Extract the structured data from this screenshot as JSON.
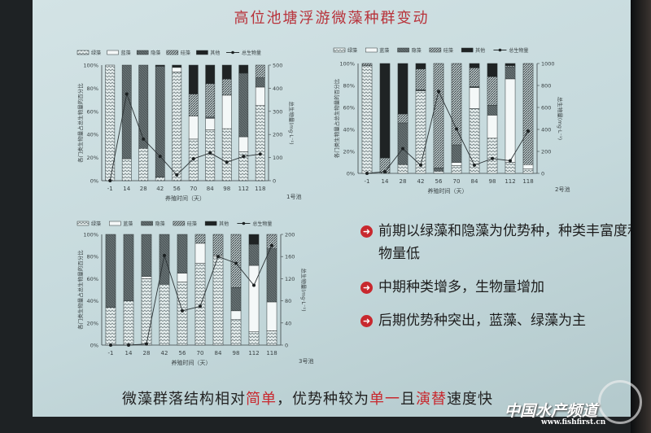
{
  "slide": {
    "title": "高位池塘浮游微藻种群变动",
    "bullets": [
      {
        "icon": "red-circle-arrow-icon",
        "text": "前期以绿藻和隐藻为优势种，种类丰富度和生物量低"
      },
      {
        "icon": "red-circle-arrow-icon",
        "text": "中期种类增多，生物量增加"
      },
      {
        "icon": "red-circle-arrow-icon",
        "text": "后期优势种突出，蓝藻、绿藻为主"
      }
    ],
    "conclusion": {
      "parts": [
        {
          "text": "微藻群落结构相对",
          "red": false
        },
        {
          "text": "简单",
          "red": true
        },
        {
          "text": "，优势种较为",
          "red": false
        },
        {
          "text": "单一",
          "red": true
        },
        {
          "text": "且",
          "red": false
        },
        {
          "text": "演替",
          "red": true
        },
        {
          "text": "速度快",
          "red": false
        }
      ]
    },
    "watermark": {
      "name": "中国水产频道",
      "url": "www.fishfirst.cn"
    },
    "colors": {
      "title": "#b8323a",
      "accent_red": "#c8282e",
      "slide_bg": "#c8dcdf"
    }
  },
  "chart_data": [
    {
      "type": "bar+line",
      "stacked": true,
      "pond_label": "1号池",
      "xlabel": "养殖时间（天）",
      "ylabel": "各门类生物量占总生物量的百分比",
      "y2label": "总生物量(mg·L⁻¹)",
      "categories": [
        "-1",
        "14",
        "28",
        "42",
        "56",
        "70",
        "84",
        "98",
        "112",
        "118"
      ],
      "ylim": [
        0,
        100
      ],
      "yticks": [
        "0%",
        "20%",
        "40%",
        "60%",
        "80%",
        "100%"
      ],
      "y2lim": [
        0,
        500
      ],
      "y2ticks": [
        "0",
        "100",
        "200",
        "300",
        "400",
        "500"
      ],
      "series": [
        {
          "name": "绿藻",
          "pattern": "zigzag",
          "values": [
            100,
            19,
            28,
            3,
            94,
            36,
            44,
            45,
            25,
            65
          ]
        },
        {
          "name": "蓝藻",
          "pattern": "white",
          "values": [
            0,
            0,
            0,
            0,
            4,
            20,
            10,
            29,
            13,
            16
          ]
        },
        {
          "name": "隐藻",
          "pattern": "dark",
          "values": [
            0,
            81,
            72,
            96,
            0,
            0,
            1,
            0,
            55,
            8
          ]
        },
        {
          "name": "硅藻",
          "pattern": "hatch",
          "values": [
            0,
            0,
            0,
            0,
            0,
            19,
            29,
            14,
            0,
            11
          ]
        },
        {
          "name": "其他",
          "pattern": "black",
          "values": [
            0,
            0,
            0,
            1,
            2,
            25,
            16,
            12,
            7,
            0
          ]
        }
      ],
      "line": {
        "name": "总生物量",
        "values": [
          0,
          375,
          180,
          105,
          25,
          95,
          120,
          80,
          105,
          115
        ]
      }
    },
    {
      "type": "bar+line",
      "stacked": true,
      "pond_label": "2号池",
      "xlabel": "养殖时间（天）",
      "ylabel": "各门类生物量占总生物量的百分比",
      "y2label": "总生物量(mg·L⁻¹)",
      "categories": [
        "-1",
        "14",
        "28",
        "42",
        "56",
        "70",
        "84",
        "98",
        "112",
        "118"
      ],
      "ylim": [
        0,
        100
      ],
      "yticks": [
        "0%",
        "20%",
        "40%",
        "60%",
        "80%",
        "100%"
      ],
      "y2lim": [
        0,
        1000
      ],
      "y2ticks": [
        "0",
        "200",
        "400",
        "600",
        "800",
        "1000"
      ],
      "series": [
        {
          "name": "绿藻",
          "pattern": "zigzag",
          "values": [
            98,
            0,
            8,
            75,
            2,
            7,
            59,
            32,
            10,
            4
          ]
        },
        {
          "name": "蓝藻",
          "pattern": "white",
          "values": [
            0,
            0,
            0,
            0,
            0,
            3,
            19,
            21,
            76,
            4
          ]
        },
        {
          "name": "隐藻",
          "pattern": "dark",
          "values": [
            0,
            0,
            38,
            1,
            3,
            16,
            1,
            9,
            11,
            0
          ]
        },
        {
          "name": "硅藻",
          "pattern": "hatch",
          "values": [
            2,
            14,
            8,
            19,
            95,
            74,
            17,
            26,
            1,
            92
          ]
        },
        {
          "name": "其他",
          "pattern": "black",
          "values": [
            0,
            86,
            46,
            5,
            0,
            0,
            4,
            12,
            2,
            0
          ]
        }
      ],
      "line": {
        "name": "总生物量",
        "values": [
          0,
          15,
          225,
          75,
          745,
          405,
          75,
          135,
          115,
          385
        ]
      }
    },
    {
      "type": "bar+line",
      "stacked": true,
      "pond_label": "3号池",
      "xlabel": "养殖时间（天）",
      "ylabel": "各门类生物量占总生物量的百分比",
      "y2label": "总生物量(mg·L⁻¹)",
      "categories": [
        "-1",
        "14",
        "28",
        "42",
        "56",
        "70",
        "84",
        "98",
        "112",
        "118"
      ],
      "ylim": [
        0,
        100
      ],
      "yticks": [
        "0%",
        "20%",
        "40%",
        "60%",
        "80%",
        "100%"
      ],
      "y2lim": [
        0,
        200
      ],
      "y2ticks": [
        "0",
        "40",
        "80",
        "120",
        "160",
        "200"
      ],
      "series": [
        {
          "name": "绿藻",
          "pattern": "zigzag",
          "values": [
            34,
            40,
            60,
            55,
            57,
            74,
            80,
            23,
            12,
            13
          ]
        },
        {
          "name": "蓝藻",
          "pattern": "white",
          "values": [
            0,
            0,
            2,
            0,
            8,
            18,
            1,
            8,
            60,
            26
          ]
        },
        {
          "name": "隐藻",
          "pattern": "dark",
          "values": [
            66,
            60,
            38,
            45,
            35,
            0,
            0,
            21,
            19,
            48
          ]
        },
        {
          "name": "硅藻",
          "pattern": "hatch",
          "values": [
            0,
            0,
            0,
            0,
            0,
            8,
            19,
            48,
            0,
            13
          ]
        },
        {
          "name": "其他",
          "pattern": "black",
          "values": [
            0,
            0,
            0,
            0,
            0,
            0,
            0,
            0,
            9,
            0
          ]
        }
      ],
      "line": {
        "name": "总生物量",
        "values": [
          0,
          0,
          2,
          162,
          62,
          70,
          160,
          148,
          108,
          180
        ]
      }
    }
  ]
}
